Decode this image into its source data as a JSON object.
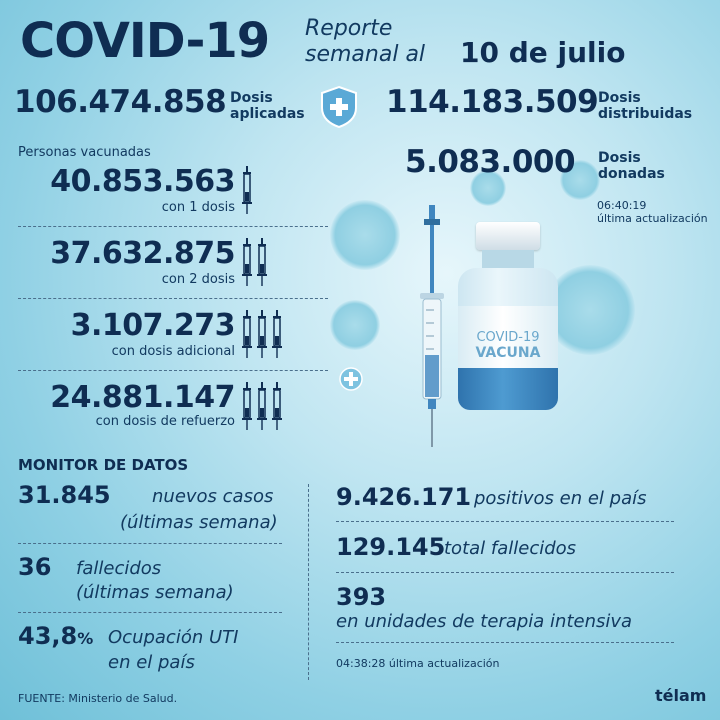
{
  "header": {
    "title": "COVID-19",
    "subtitle_line1": "Reporte",
    "subtitle_line2": "semanal al",
    "date": "10 de julio"
  },
  "doses": {
    "applied_value": "106.474.858",
    "applied_label_1": "Dosis",
    "applied_label_2": "aplicadas",
    "distributed_value": "114.183.509",
    "distributed_label_1": "Dosis",
    "distributed_label_2": "distribuidas",
    "donated_value": "5.083.000",
    "donated_label_1": "Dosis",
    "donated_label_2": "donadas",
    "update_time": "06:40:19",
    "update_label": "última actualización"
  },
  "vaccinated": {
    "heading": "Personas vacunadas",
    "rows": [
      {
        "value": "40.853.563",
        "label": "con 1 dosis",
        "syringes": 1
      },
      {
        "value": "37.632.875",
        "label": "con 2 dosis",
        "syringes": 2
      },
      {
        "value": "3.107.273",
        "label": "con dosis adicional",
        "syringes": 3
      },
      {
        "value": "24.881.147",
        "label": "con dosis de refuerzo",
        "syringes": 3
      }
    ]
  },
  "vial": {
    "line1": "COVID-19",
    "line2": "VACUNA"
  },
  "monitor": {
    "heading": "MONITOR DE DATOS",
    "new_cases_value": "31.845",
    "new_cases_label_1": "nuevos casos",
    "new_cases_label_2": "(últimas semana)",
    "deaths_value": "36",
    "deaths_label_1": "fallecidos",
    "deaths_label_2": "(últimas semana)",
    "icu_value": "43,8",
    "icu_pct": "%",
    "icu_label_1": "Ocupación UTI",
    "icu_label_2": "en el país",
    "positives_value": "9.426.171",
    "positives_label": "positivos en el país",
    "total_deaths_value": "129.145",
    "total_deaths_label": "total fallecidos",
    "icu_units_value": "393",
    "icu_units_label": "en unidades de terapia intensiva",
    "update_time": "04:38:28",
    "update_label": "última actualización"
  },
  "footer": {
    "source": "FUENTE: Ministerio de Salud.",
    "brand": "télam"
  },
  "colors": {
    "navy": "#0f2d52",
    "background": "#8fd0e4",
    "vial_blue": "#3f86bf"
  }
}
